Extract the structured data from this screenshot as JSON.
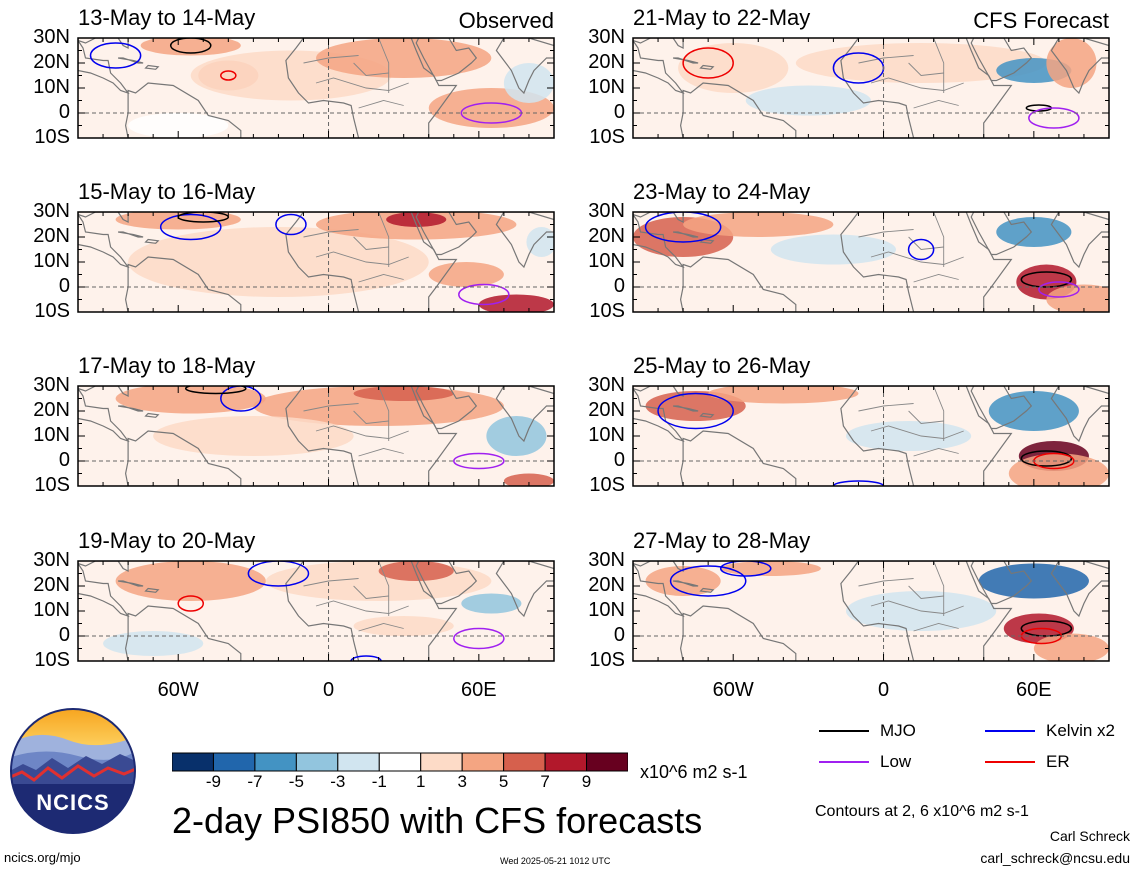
{
  "panels_observed": [
    {
      "title": "13-May to 14-May",
      "tag": "Observed"
    },
    {
      "title": "15-May to 16-May",
      "tag": ""
    },
    {
      "title": "17-May to 18-May",
      "tag": ""
    },
    {
      "title": "19-May to 20-May",
      "tag": ""
    }
  ],
  "panels_forecast": [
    {
      "title": "21-May to 22-May",
      "tag": "CFS Forecast"
    },
    {
      "title": "23-May to 24-May",
      "tag": ""
    },
    {
      "title": "25-May to 26-May",
      "tag": ""
    },
    {
      "title": "27-May to 28-May",
      "tag": ""
    }
  ],
  "lat_labels": [
    "30N",
    "20N",
    "10N",
    "0",
    "10S"
  ],
  "lon_labels": [
    "60W",
    "0",
    "60E"
  ],
  "colorbar": {
    "ticks": [
      "-9",
      "-7",
      "-5",
      "-3",
      "-1",
      "1",
      "3",
      "5",
      "7",
      "9"
    ],
    "colors": [
      "#08306b",
      "#2166ac",
      "#4393c3",
      "#92c5de",
      "#d1e5f0",
      "#ffffff",
      "#fddbc7",
      "#f4a582",
      "#d6604d",
      "#b2182b",
      "#67001f"
    ],
    "units": "x10^6 m2 s-1"
  },
  "legend": {
    "items": [
      {
        "label": "MJO",
        "color": "#000000"
      },
      {
        "label": "Kelvin x2",
        "color": "#0000ee"
      },
      {
        "label": "Low",
        "color": "#a020f0"
      },
      {
        "label": "ER",
        "color": "#ee0000"
      }
    ],
    "contours_note": "Contours at 2, 6 x10^6 m2 s-1"
  },
  "main_title": "2-day PSI850 with CFS forecasts",
  "logo_text": "NCICS",
  "footer": {
    "url": "ncics.org/mjo",
    "timestamp": "Wed 2025-05-21 1012 UTC",
    "author": "Carl Schreck",
    "email": "carl_schreck@ncsu.edu"
  }
}
